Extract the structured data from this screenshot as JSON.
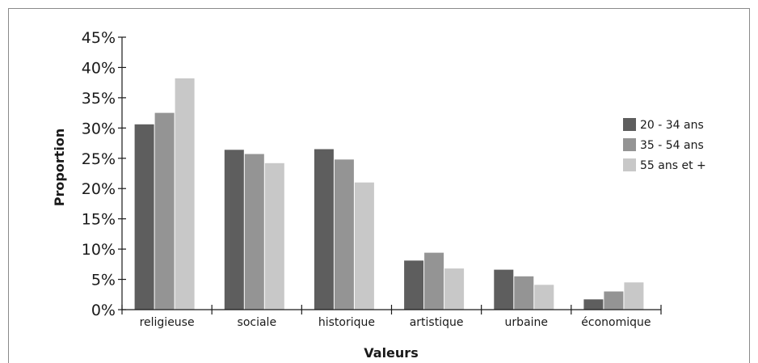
{
  "chart_data": {
    "type": "bar",
    "title": "",
    "xlabel": "Valeurs",
    "ylabel": "Proportion",
    "ylim": [
      0,
      45
    ],
    "yticks": [
      "0%",
      "5%",
      "10%",
      "15%",
      "20%",
      "25%",
      "30%",
      "35%",
      "40%",
      "45%"
    ],
    "grid": false,
    "legend_position": "right",
    "categories": [
      "religieuse",
      "sociale",
      "historique",
      "artistique",
      "urbaine",
      "économique"
    ],
    "series": [
      {
        "name": "20 - 34 ans",
        "color": "#5e5e5e",
        "values": [
          30.6,
          26.4,
          26.5,
          8.1,
          6.6,
          1.7
        ]
      },
      {
        "name": "35 - 54 ans",
        "color": "#949494",
        "values": [
          32.5,
          25.7,
          24.8,
          9.4,
          5.5,
          3.0
        ]
      },
      {
        "name": "55 ans et +",
        "color": "#c8c8c8",
        "values": [
          38.2,
          24.2,
          21.0,
          6.8,
          4.1,
          4.5
        ]
      }
    ]
  }
}
